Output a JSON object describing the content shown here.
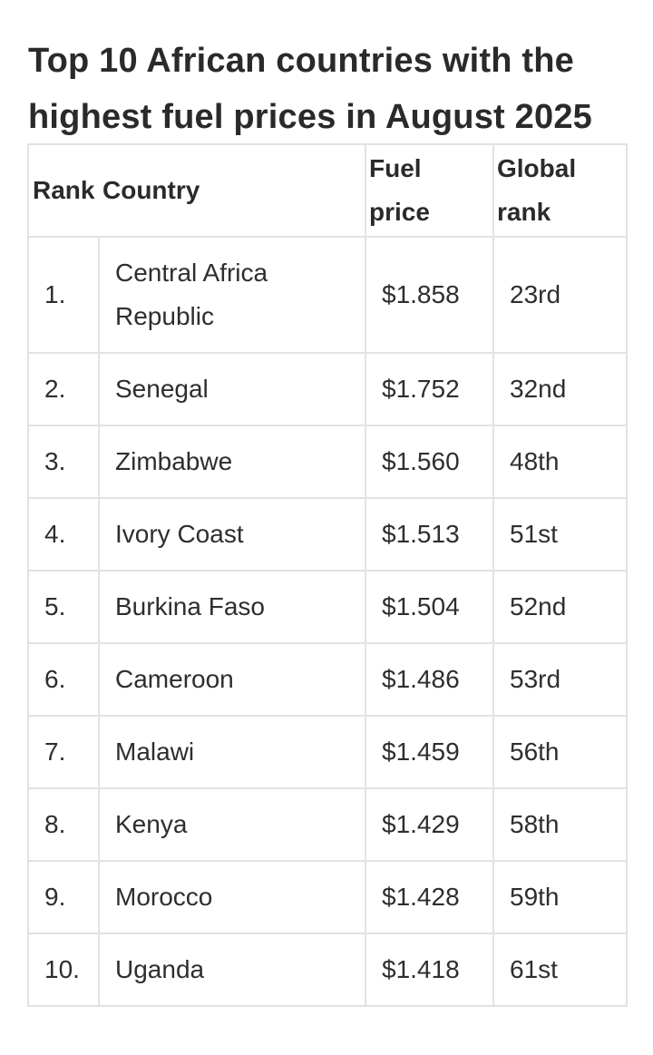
{
  "title": "Top 10 African countries with the highest fuel prices in August 2025",
  "table": {
    "headers": {
      "rank": "Rank",
      "country": "Country",
      "fuel_price_line1": "Fuel",
      "fuel_price_line2": "price",
      "global_rank_line1": "Global",
      "global_rank_line2": "rank"
    },
    "rows": [
      {
        "rank": "1.",
        "country_line1": "Central Africa",
        "country_line2": "Republic",
        "price": "$1.858",
        "global_rank": "23rd"
      },
      {
        "rank": "2.",
        "country": "Senegal",
        "price": "$1.752",
        "global_rank": "32nd"
      },
      {
        "rank": "3.",
        "country": "Zimbabwe",
        "price": "$1.560",
        "global_rank": "48th"
      },
      {
        "rank": "4.",
        "country": "Ivory Coast",
        "price": "$1.513",
        "global_rank": "51st"
      },
      {
        "rank": "5.",
        "country": "Burkina Faso",
        "price": "$1.504",
        "global_rank": "52nd"
      },
      {
        "rank": "6.",
        "country": "Cameroon",
        "price": "$1.486",
        "global_rank": "53rd"
      },
      {
        "rank": "7.",
        "country": "Malawi",
        "price": "$1.459",
        "global_rank": "56th"
      },
      {
        "rank": "8.",
        "country": "Kenya",
        "price": "$1.429",
        "global_rank": "58th"
      },
      {
        "rank": "9.",
        "country": "Morocco",
        "price": "$1.428",
        "global_rank": "59th"
      },
      {
        "rank": "10.",
        "country": "Uganda",
        "price": "$1.418",
        "global_rank": "61st"
      }
    ]
  }
}
